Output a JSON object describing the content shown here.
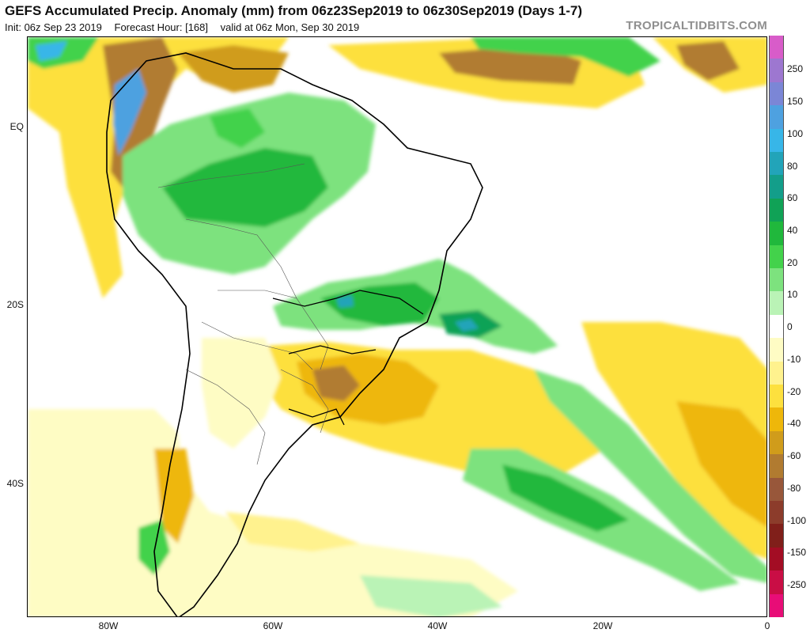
{
  "header": {
    "title": "GEFS Accumulated Precip. Anomaly (mm) from 06z23Sep2019 to 06z30Sep2019 (Days 1-7)",
    "init": "Init: 06z Sep 23 2019",
    "forecast_hour": "Forecast Hour: [168]",
    "valid": "valid at 06z Mon, Sep 30 2019",
    "brand": "TROPICALTIDBITS.COM"
  },
  "map": {
    "region": "South America",
    "lat_labels": [
      "EQ",
      "20S",
      "40S"
    ],
    "lon_labels": [
      "80W",
      "60W",
      "40W",
      "20W",
      "0"
    ]
  },
  "colorbar": {
    "units": "mm",
    "labels": [
      "250",
      "150",
      "100",
      "80",
      "60",
      "40",
      "20",
      "10",
      "0",
      "-10",
      "-20",
      "-40",
      "-60",
      "-80",
      "-100",
      "-150",
      "-250"
    ],
    "colors": [
      "#d85cc9",
      "#9d77d0",
      "#7b86d6",
      "#4ea1e0",
      "#37b6e8",
      "#22a4b9",
      "#139e8a",
      "#10a256",
      "#20b83c",
      "#43d24b",
      "#7de27e",
      "#baf3b6",
      "#ffffff",
      "#fefcc4",
      "#fff28e",
      "#fde03e",
      "#eeb70a",
      "#d09c1b",
      "#b17b30",
      "#98573a",
      "#8c3c2b",
      "#801f1a",
      "#a30d24",
      "#c90e45",
      "#e80d77"
    ]
  }
}
